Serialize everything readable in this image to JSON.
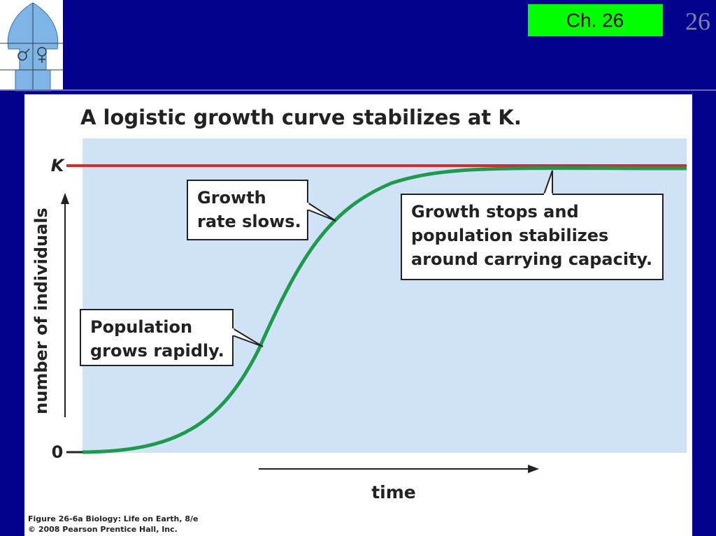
{
  "header": {
    "chapter": "Ch. 26",
    "page_number": "26"
  },
  "figure": {
    "title": "A logistic growth curve stabilizes at K.",
    "y_axis_label": "number of individuals",
    "x_axis_label": "time",
    "y_tick_top": "K",
    "y_tick_bottom": "0",
    "callouts": [
      {
        "lines": [
          "Growth",
          "rate slows."
        ]
      },
      {
        "lines": [
          "Growth stops and",
          "population stabilizes",
          "around carrying capacity."
        ]
      },
      {
        "lines": [
          "Population",
          "grows rapidly."
        ]
      }
    ],
    "credits": [
      "Figure 26-6a  Biology: Life on Earth, 8/e",
      "© 2008 Pearson Prentice Hall, Inc."
    ]
  }
}
